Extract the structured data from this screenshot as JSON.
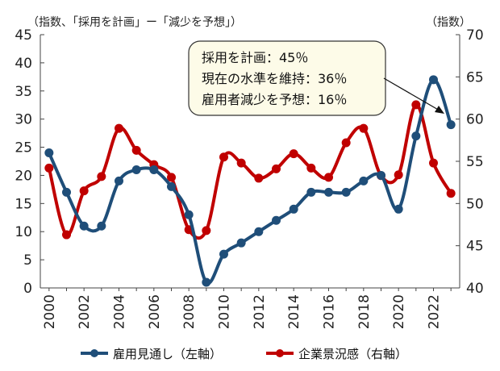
{
  "chart_data": {
    "type": "line",
    "left_axis": {
      "title": "（指数、「採用を計画」ー「減少を予想」）",
      "ylim": [
        0,
        45
      ],
      "ticks": [
        0,
        5,
        10,
        15,
        20,
        25,
        30,
        35,
        40,
        45
      ]
    },
    "right_axis": {
      "title": "（指数）",
      "ylim": [
        40,
        70
      ],
      "ticks": [
        40,
        45,
        50,
        55,
        60,
        65,
        70
      ]
    },
    "x_ticks": [
      "2000",
      "2002",
      "2004",
      "2006",
      "2008",
      "2010",
      "2012",
      "2014",
      "2016",
      "2018",
      "2020",
      "2022"
    ],
    "grid": false,
    "legend_position": "bottom",
    "x": [
      2000,
      2001,
      2002,
      2003,
      2004,
      2005,
      2006,
      2007,
      2008,
      2009,
      2010,
      2011,
      2012,
      2013,
      2014,
      2015,
      2016,
      2017,
      2018,
      2019,
      2020,
      2021,
      2022,
      2023
    ],
    "series": [
      {
        "name": "雇用見通し（左軸）",
        "axis": "left",
        "color": "#1f4e79",
        "values": [
          24,
          17,
          11,
          11,
          19,
          21,
          21,
          18,
          13,
          1,
          6,
          8,
          10,
          12,
          14,
          17,
          17,
          17,
          19,
          20,
          14,
          27,
          37,
          29
        ]
      },
      {
        "name": "企業景況感（右軸）",
        "axis": "right",
        "color": "#c00000",
        "values": [
          54.2,
          46.3,
          51.5,
          53.2,
          58.9,
          56.3,
          54.6,
          53.1,
          46.9,
          46.8,
          55.5,
          54.8,
          53.0,
          54.1,
          55.9,
          54.2,
          53.1,
          57.2,
          58.9,
          53.3,
          53.4,
          61.7,
          54.8,
          51.2
        ]
      }
    ],
    "annotation": {
      "lines": [
        "採用を計画：45％",
        "現在の水準を維持：36％",
        "雇用者減少を予想：16％"
      ]
    }
  }
}
